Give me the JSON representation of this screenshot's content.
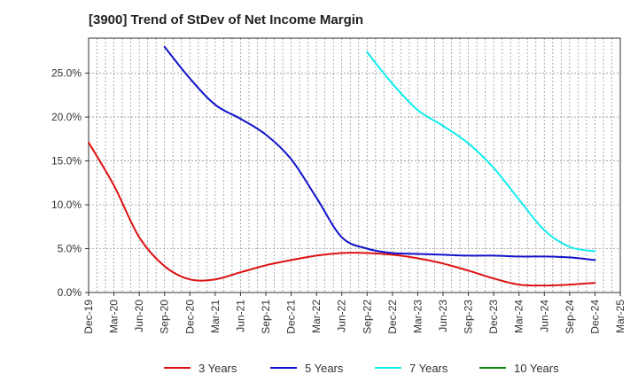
{
  "chart_data": {
    "type": "line",
    "title": "[3900]  Trend of StDev of Net Income Margin",
    "xlabel": "",
    "ylabel": "",
    "ylim": [
      0,
      0.29
    ],
    "yticks": [
      0,
      0.05,
      0.1,
      0.15,
      0.2,
      0.25
    ],
    "ytick_labels": [
      "0.0%",
      "5.0%",
      "10.0%",
      "15.0%",
      "20.0%",
      "25.0%"
    ],
    "categories": [
      "Dec-19",
      "Mar-20",
      "Jun-20",
      "Sep-20",
      "Dec-20",
      "Mar-21",
      "Jun-21",
      "Sep-21",
      "Dec-21",
      "Mar-22",
      "Jun-22",
      "Sep-22",
      "Dec-22",
      "Mar-23",
      "Jun-23",
      "Sep-23",
      "Dec-23",
      "Mar-24",
      "Jun-24",
      "Sep-24",
      "Dec-24",
      "Mar-25"
    ],
    "grid": true,
    "legend_position": "bottom",
    "series": [
      {
        "name": "3 Years",
        "color": "#dd1111",
        "values": [
          0.171,
          0.122,
          0.063,
          0.03,
          0.015,
          0.015,
          0.023,
          0.031,
          0.037,
          0.042,
          0.045,
          0.045,
          0.043,
          0.039,
          0.033,
          0.025,
          0.016,
          0.009,
          0.008,
          0.009,
          0.011,
          null
        ]
      },
      {
        "name": "5 Years",
        "color": "#1111cc",
        "values": [
          null,
          null,
          null,
          0.28,
          0.244,
          0.214,
          0.198,
          0.18,
          0.152,
          0.108,
          0.063,
          0.05,
          0.045,
          0.044,
          0.043,
          0.042,
          0.042,
          0.041,
          0.041,
          0.04,
          0.037,
          null
        ]
      },
      {
        "name": "7 Years",
        "color": "#11eeee",
        "values": [
          null,
          null,
          null,
          null,
          null,
          null,
          null,
          null,
          null,
          null,
          null,
          0.274,
          0.238,
          0.208,
          0.19,
          0.17,
          0.142,
          0.106,
          0.071,
          0.052,
          0.047,
          null
        ]
      },
      {
        "name": "10 Years",
        "color": "#118811",
        "values": [
          null,
          null,
          null,
          null,
          null,
          null,
          null,
          null,
          null,
          null,
          null,
          null,
          null,
          null,
          null,
          null,
          null,
          null,
          null,
          null,
          null,
          null
        ]
      }
    ]
  }
}
